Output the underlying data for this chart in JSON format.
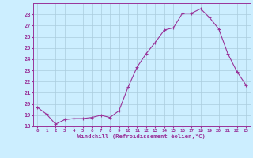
{
  "x": [
    0,
    1,
    2,
    3,
    4,
    5,
    6,
    7,
    8,
    9,
    10,
    11,
    12,
    13,
    14,
    15,
    16,
    17,
    18,
    19,
    20,
    21,
    22,
    23
  ],
  "y": [
    19.7,
    19.1,
    18.2,
    18.6,
    18.7,
    18.7,
    18.8,
    19.0,
    18.8,
    19.4,
    21.5,
    23.3,
    24.5,
    25.5,
    26.6,
    26.8,
    28.1,
    28.1,
    28.5,
    27.7,
    26.7,
    24.5,
    22.9,
    21.7
  ],
  "line_color": "#993399",
  "marker": "+",
  "bg_color": "#cceeff",
  "grid_color": "#aaccdd",
  "xlabel": "Windchill (Refroidissement éolien,°C)",
  "xlabel_color": "#993399",
  "tick_color": "#993399",
  "ylim": [
    18,
    29
  ],
  "yticks": [
    18,
    19,
    20,
    21,
    22,
    23,
    24,
    25,
    26,
    27,
    28
  ],
  "title": ""
}
